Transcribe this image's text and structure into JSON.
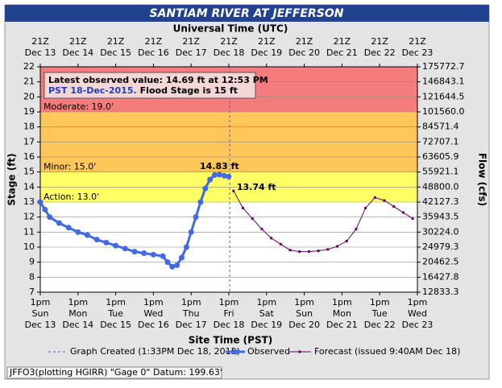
{
  "chart_data": {
    "type": "line",
    "title": "SANTIAM RIVER AT JEFFERSON",
    "x2_label": "Universal Time (UTC)",
    "x_label": "Site Time (PST)",
    "y_label": "Stage (ft)",
    "y2_label": "Flow (cfs)",
    "xlim": [
      "Dec 13 13:00",
      "Dec 23 13:00"
    ],
    "ylim": [
      7,
      22
    ],
    "yticks": [
      7,
      8,
      9,
      10,
      11,
      12,
      13,
      14,
      15,
      16,
      17,
      18,
      19,
      20,
      21,
      22
    ],
    "y2ticks": [
      {
        "value": 12833.3,
        "label": "12833.3"
      },
      {
        "value": 16427.8,
        "label": "16427.8"
      },
      {
        "value": 20462.5,
        "label": "20462.5"
      },
      {
        "value": 24979.3,
        "label": "24979.3"
      },
      {
        "value": 30224,
        "label": "30224.0"
      },
      {
        "value": 35943.5,
        "label": "35943.5"
      },
      {
        "value": 42127.3,
        "label": "42127.3"
      },
      {
        "value": 48800,
        "label": "48800.0"
      },
      {
        "value": 55921.1,
        "label": "55921.1"
      },
      {
        "value": 63605.9,
        "label": "63605.9"
      },
      {
        "value": 72707.1,
        "label": "72707.1"
      },
      {
        "value": 84571.4,
        "label": "84571.4"
      },
      {
        "value": 101560,
        "label": "101560.0"
      },
      {
        "value": 121644.5,
        "label": "121644.5"
      },
      {
        "value": 146843.1,
        "label": "146843.1"
      },
      {
        "value": 175772.7,
        "label": "175772.7"
      }
    ],
    "xticks": [
      {
        "value": "Dec 13 13:00",
        "label": [
          "1pm",
          "Sun",
          "Dec 13"
        ]
      },
      {
        "value": "Dec 14 13:00",
        "label": [
          "1pm",
          "Mon",
          "Dec 14"
        ]
      },
      {
        "value": "Dec 15 13:00",
        "label": [
          "1pm",
          "Tue",
          "Dec 15"
        ]
      },
      {
        "value": "Dec 16 13:00",
        "label": [
          "1pm",
          "Wed",
          "Dec 16"
        ]
      },
      {
        "value": "Dec 17 13:00",
        "label": [
          "1pm",
          "Thu",
          "Dec 17"
        ]
      },
      {
        "value": "Dec 18 13:00",
        "label": [
          "1pm",
          "Fri",
          "Dec 18"
        ]
      },
      {
        "value": "Dec 19 13:00",
        "label": [
          "1pm",
          "Sat",
          "Dec 19"
        ]
      },
      {
        "value": "Dec 20 13:00",
        "label": [
          "1pm",
          "Sun",
          "Dec 20"
        ]
      },
      {
        "value": "Dec 21 13:00",
        "label": [
          "1pm",
          "Mon",
          "Dec 21"
        ]
      },
      {
        "value": "Dec 22 13:00",
        "label": [
          "1pm",
          "Tue",
          "Dec 22"
        ]
      },
      {
        "value": "Dec 23 13:00",
        "label": [
          "1pm",
          "Wed",
          "Dec 23"
        ]
      }
    ],
    "x2ticks": [
      {
        "value": "Dec 13 13:00",
        "label": [
          "21Z",
          "Dec 13"
        ]
      },
      {
        "value": "Dec 14 13:00",
        "label": [
          "21Z",
          "Dec 14"
        ]
      },
      {
        "value": "Dec 15 13:00",
        "label": [
          "21Z",
          "Dec 15"
        ]
      },
      {
        "value": "Dec 16 13:00",
        "label": [
          "21Z",
          "Dec 16"
        ]
      },
      {
        "value": "Dec 17 13:00",
        "label": [
          "21Z",
          "Dec 17"
        ]
      },
      {
        "value": "Dec 18 13:00",
        "label": [
          "21Z",
          "Dec 18"
        ]
      },
      {
        "value": "Dec 19 13:00",
        "label": [
          "21Z",
          "Dec 19"
        ]
      },
      {
        "value": "Dec 20 13:00",
        "label": [
          "21Z",
          "Dec 20"
        ]
      },
      {
        "value": "Dec 21 13:00",
        "label": [
          "21Z",
          "Dec 21"
        ]
      },
      {
        "value": "Dec 22 13:00",
        "label": [
          "21Z",
          "Dec 22"
        ]
      },
      {
        "value": "Dec 23 13:00",
        "label": [
          "21Z",
          "Dec 23"
        ]
      }
    ],
    "grid": true,
    "flood_categories": [
      {
        "label": "Action: 13.0'",
        "value": 13,
        "color": "#ffff66"
      },
      {
        "label": "Minor: 15.0'",
        "value": 15,
        "color": "#ffc65a"
      },
      {
        "label": "Moderate: 19.0'",
        "value": 19,
        "color": "#f47c7c"
      }
    ],
    "created": {
      "x": "Dec 18 13:33",
      "label": "Graph Created (1:33PM Dec 18, 2015)"
    },
    "annotation": {
      "lines": [
        "Latest observed value: 14.69 ft at 12:53 PM",
        "PST 18-Dec-2015."
      ],
      "note": "Flood Stage is 15 ft"
    },
    "series": [
      {
        "name": "Observed",
        "color": "#4169e1",
        "x": [
          "Dec 13 13:00",
          "Dec 13 16:00",
          "Dec 13 19:00",
          "Dec 14 01:00",
          "Dec 14 07:00",
          "Dec 14 13:00",
          "Dec 14 19:00",
          "Dec 15 01:00",
          "Dec 15 07:00",
          "Dec 15 13:00",
          "Dec 15 19:00",
          "Dec 16 01:00",
          "Dec 16 07:00",
          "Dec 16 13:00",
          "Dec 16 19:00",
          "Dec 16 22:00",
          "Dec 17 01:00",
          "Dec 17 04:00",
          "Dec 17 07:00",
          "Dec 17 10:00",
          "Dec 17 13:00",
          "Dec 17 16:00",
          "Dec 17 19:00",
          "Dec 17 22:00",
          "Dec 18 01:00",
          "Dec 18 04:00",
          "Dec 18 07:00",
          "Dec 18 10:00",
          "Dec 18 12:53"
        ],
        "values": [
          13.0,
          12.5,
          12.0,
          11.6,
          11.3,
          11.0,
          10.8,
          10.5,
          10.3,
          10.1,
          9.9,
          9.7,
          9.6,
          9.5,
          9.4,
          9.0,
          8.7,
          8.8,
          9.3,
          10.0,
          11.0,
          12.0,
          13.0,
          13.9,
          14.5,
          14.8,
          14.83,
          14.75,
          14.69
        ],
        "value_labels": [
          null,
          null,
          null,
          null,
          null,
          null,
          null,
          null,
          null,
          null,
          null,
          null,
          null,
          null,
          null,
          null,
          null,
          null,
          null,
          null,
          null,
          null,
          null,
          null,
          null,
          null,
          "14.83 ft",
          null,
          null
        ]
      },
      {
        "name": "Forecast (issued 9:40AM Dec 18)",
        "color": "#660066",
        "x": [
          "Dec 18 16:00",
          "Dec 18 22:00",
          "Dec 19 04:00",
          "Dec 19 10:00",
          "Dec 19 16:00",
          "Dec 19 22:00",
          "Dec 20 04:00",
          "Dec 20 10:00",
          "Dec 20 16:00",
          "Dec 20 22:00",
          "Dec 21 04:00",
          "Dec 21 10:00",
          "Dec 21 16:00",
          "Dec 21 22:00",
          "Dec 22 04:00",
          "Dec 22 10:00",
          "Dec 22 16:00",
          "Dec 22 22:00",
          "Dec 23 04:00",
          "Dec 23 10:00"
        ],
        "values": [
          13.74,
          12.6,
          11.9,
          11.2,
          10.6,
          10.2,
          9.8,
          9.7,
          9.7,
          9.75,
          9.85,
          10.05,
          10.4,
          11.2,
          12.6,
          13.3,
          13.1,
          12.7,
          12.3,
          11.9
        ],
        "value_labels": [
          "13.74 ft",
          null,
          null,
          null,
          null,
          null,
          null,
          null,
          null,
          null,
          null,
          null,
          null,
          null,
          null,
          null,
          null,
          null,
          null,
          null
        ]
      }
    ],
    "footer": "JFFO3(plotting HGIRR) \"Gage 0\" Datum: 199.63'"
  }
}
